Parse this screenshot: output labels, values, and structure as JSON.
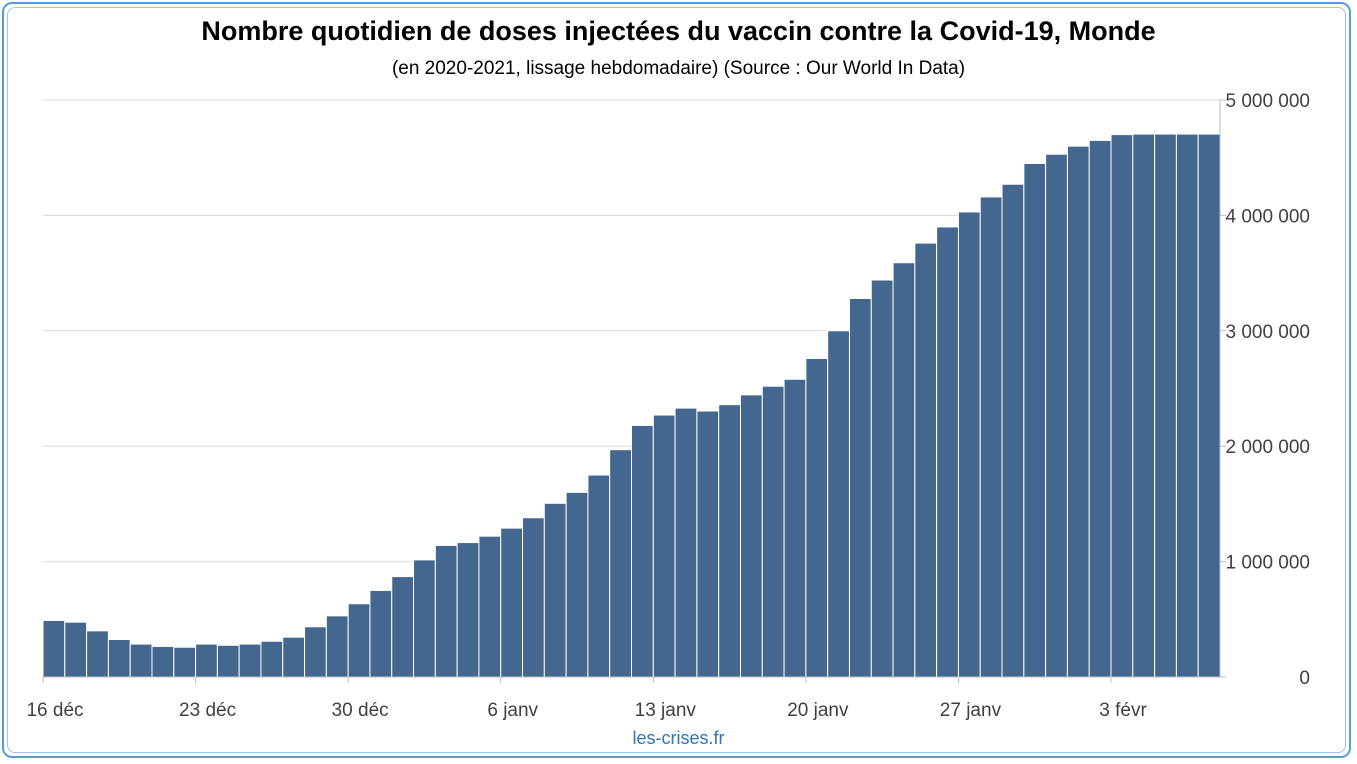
{
  "chart_data": {
    "type": "bar",
    "title": "Nombre quotidien de doses injectées du vaccin contre la Covid-19, Monde",
    "subtitle": "(en 2020-2021, lissage hebdomadaire) (Source : Our World In Data)",
    "credit": "les-crises.fr",
    "xlabel": "",
    "ylabel": "",
    "y_axis_position": "right",
    "ylim": [
      0,
      5000000
    ],
    "y_ticks": [
      0,
      1000000,
      2000000,
      3000000,
      4000000,
      5000000
    ],
    "y_tick_labels": [
      "0",
      "1 000 000",
      "2 000 000",
      "3 000 000",
      "4 000 000",
      "5 000 000"
    ],
    "x_tick_labels": [
      {
        "index": 0,
        "label": "16 déc"
      },
      {
        "index": 7,
        "label": "23 déc"
      },
      {
        "index": 14,
        "label": "30 déc"
      },
      {
        "index": 21,
        "label": "6 janv"
      },
      {
        "index": 28,
        "label": "13 janv"
      },
      {
        "index": 35,
        "label": "20 janv"
      },
      {
        "index": 42,
        "label": "27 janv"
      },
      {
        "index": 49,
        "label": "3 févr"
      }
    ],
    "grid": true,
    "bar_color": "#44678f",
    "values": [
      490000,
      475000,
      400000,
      325000,
      285000,
      265000,
      258000,
      285000,
      275000,
      285000,
      310000,
      345000,
      435000,
      530000,
      635000,
      750000,
      870000,
      1015000,
      1140000,
      1165000,
      1220000,
      1290000,
      1380000,
      1505000,
      1600000,
      1750000,
      1970000,
      2180000,
      2270000,
      2330000,
      2305000,
      2360000,
      2445000,
      2520000,
      2580000,
      2760000,
      3000000,
      3280000,
      3440000,
      3590000,
      3760000,
      3900000,
      4030000,
      4160000,
      4270000,
      4450000,
      4530000,
      4600000,
      4650000,
      4700000,
      4705000,
      4705000,
      4705000,
      4705000
    ]
  }
}
